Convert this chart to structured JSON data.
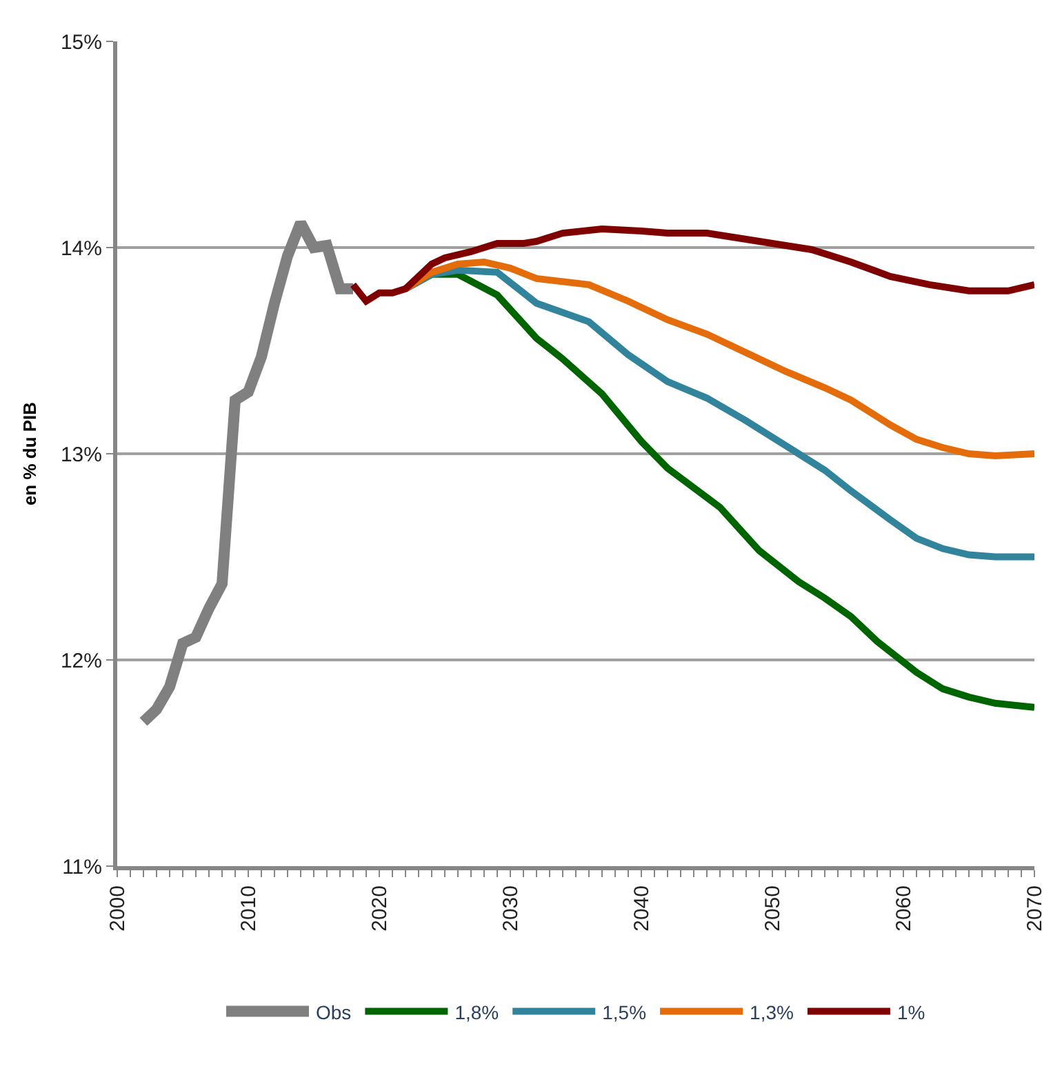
{
  "chart_data": {
    "type": "line",
    "ylabel": "en % du PIB",
    "xlim": [
      2000,
      2070
    ],
    "xticks": [
      2000,
      2010,
      2020,
      2030,
      2040,
      2050,
      2060,
      2070
    ],
    "ylim": [
      11,
      15
    ],
    "yticks": [
      {
        "value": 11,
        "label": "11%"
      },
      {
        "value": 12,
        "label": "12%"
      },
      {
        "value": 13,
        "label": "13%"
      },
      {
        "value": 14,
        "label": "14%"
      },
      {
        "value": 15,
        "label": "15%"
      }
    ],
    "grid": "y",
    "legend": "bottom",
    "marker": "none",
    "line_style": "solid",
    "series": [
      {
        "name": "Obs",
        "color": "#808080",
        "x": [
          2002,
          2003,
          2004,
          2005,
          2006,
          2007,
          2008,
          2009,
          2010,
          2011,
          2012,
          2013,
          2014,
          2015,
          2016,
          2017,
          2018
        ],
        "values": [
          11.7,
          11.76,
          11.87,
          12.08,
          12.11,
          12.25,
          12.37,
          13.26,
          13.3,
          13.47,
          13.73,
          13.96,
          14.12,
          14.0,
          14.01,
          13.8,
          13.8
        ]
      },
      {
        "name": "1,8%",
        "color": "#006400",
        "x": [
          2022,
          2024,
          2026,
          2029,
          2032,
          2034,
          2037,
          2040,
          2042,
          2046,
          2049,
          2052,
          2054,
          2056,
          2058,
          2061,
          2063,
          2065,
          2067,
          2070
        ],
        "values": [
          13.8,
          13.87,
          13.87,
          13.77,
          13.56,
          13.46,
          13.29,
          13.06,
          12.93,
          12.74,
          12.53,
          12.38,
          12.3,
          12.21,
          12.09,
          11.94,
          11.86,
          11.82,
          11.79,
          11.77
        ]
      },
      {
        "name": "1,5%",
        "color": "#31849b",
        "x": [
          2022,
          2024,
          2026,
          2029,
          2032,
          2036,
          2039,
          2042,
          2045,
          2048,
          2051,
          2054,
          2056,
          2059,
          2061,
          2063,
          2065,
          2067,
          2070
        ],
        "values": [
          13.8,
          13.87,
          13.89,
          13.88,
          13.73,
          13.64,
          13.48,
          13.35,
          13.27,
          13.16,
          13.04,
          12.92,
          12.82,
          12.68,
          12.59,
          12.54,
          12.51,
          12.5,
          12.5
        ]
      },
      {
        "name": "1,3%",
        "color": "#e46c0a",
        "x": [
          2022,
          2024,
          2026,
          2028,
          2030,
          2032,
          2036,
          2039,
          2042,
          2045,
          2048,
          2051,
          2054,
          2056,
          2059,
          2061,
          2063,
          2065,
          2067,
          2070
        ],
        "values": [
          13.8,
          13.88,
          13.92,
          13.93,
          13.9,
          13.85,
          13.82,
          13.74,
          13.65,
          13.58,
          13.49,
          13.4,
          13.32,
          13.26,
          13.14,
          13.07,
          13.03,
          13.0,
          12.99,
          13.0
        ]
      },
      {
        "name": "1%",
        "color": "#7f0000",
        "x": [
          2018,
          2019,
          2020,
          2021,
          2022,
          2023,
          2024,
          2025,
          2027,
          2029,
          2031,
          2032,
          2034,
          2037,
          2040,
          2042,
          2045,
          2048,
          2050,
          2053,
          2056,
          2059,
          2062,
          2065,
          2068,
          2070
        ],
        "values": [
          13.82,
          13.74,
          13.78,
          13.78,
          13.8,
          13.86,
          13.92,
          13.95,
          13.98,
          14.02,
          14.02,
          14.03,
          14.07,
          14.09,
          14.08,
          14.07,
          14.07,
          14.04,
          14.02,
          13.99,
          13.93,
          13.86,
          13.82,
          13.79,
          13.79,
          13.82
        ]
      }
    ]
  }
}
